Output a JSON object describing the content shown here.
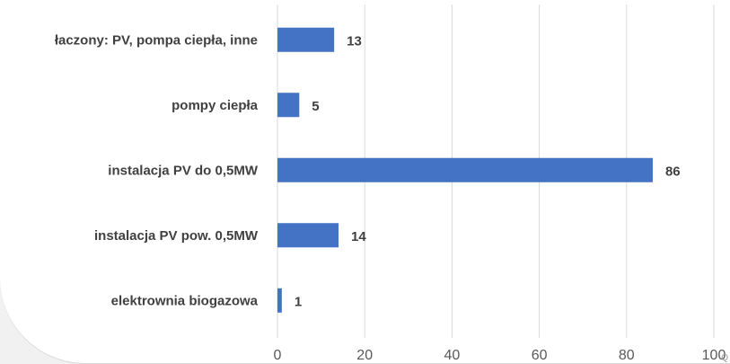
{
  "chart_data": {
    "type": "bar",
    "orientation": "horizontal",
    "categories": [
      "łaczony: PV, pompa ciepła, inne",
      "pompy ciepła",
      "instalacja PV do 0,5MW",
      "instalacja PV pow. 0,5MW",
      "elektrownia biogazowa"
    ],
    "values": [
      13,
      5,
      86,
      14,
      1
    ],
    "value_labels": [
      "13",
      "5",
      "86",
      "14",
      "1"
    ],
    "xlim": [
      0,
      100
    ],
    "x_ticks": [
      "0",
      "20",
      "40",
      "60",
      "80",
      "100"
    ],
    "title": "",
    "xlabel": "",
    "ylabel": "",
    "grid": "vertical",
    "legend": "none",
    "bar_color": "#4472c4"
  },
  "corner_mark": "Q"
}
